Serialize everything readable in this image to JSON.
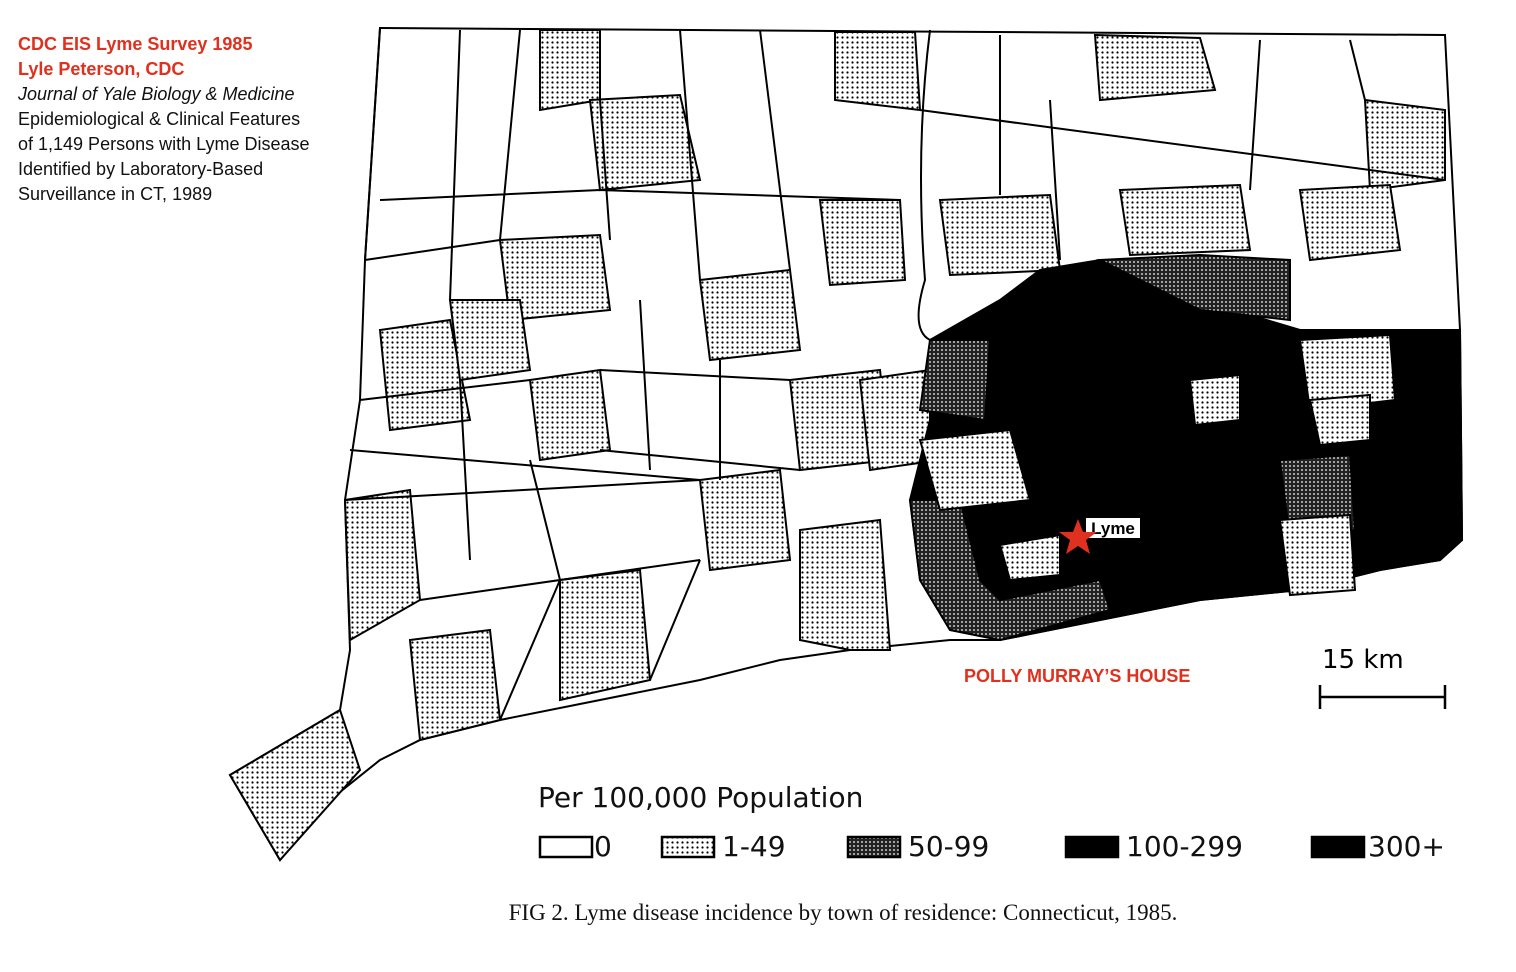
{
  "header": {
    "lines": [
      "CDC EIS Lyme Survey 1985",
      "Lyle Peterson, CDC",
      "Journal of Yale Biology & Medicine",
      "Epidemiological & Clinical Features",
      "of 1,149 Persons with Lyme Disease",
      "Identified by Laboratory-Based",
      "Surveillance in CT, 1989"
    ]
  },
  "map": {
    "town_label": "Lyme",
    "annotation": "POLLY MURRAY’S HOUSE"
  },
  "scale": {
    "label": "15  km"
  },
  "legend": {
    "title": "Per  100,000  Population",
    "items": [
      "0",
      "1-49",
      "50-99",
      "100-299",
      "300+"
    ]
  },
  "caption": "FIG 2. Lyme disease incidence by town of residence: Connecticut, 1985."
}
